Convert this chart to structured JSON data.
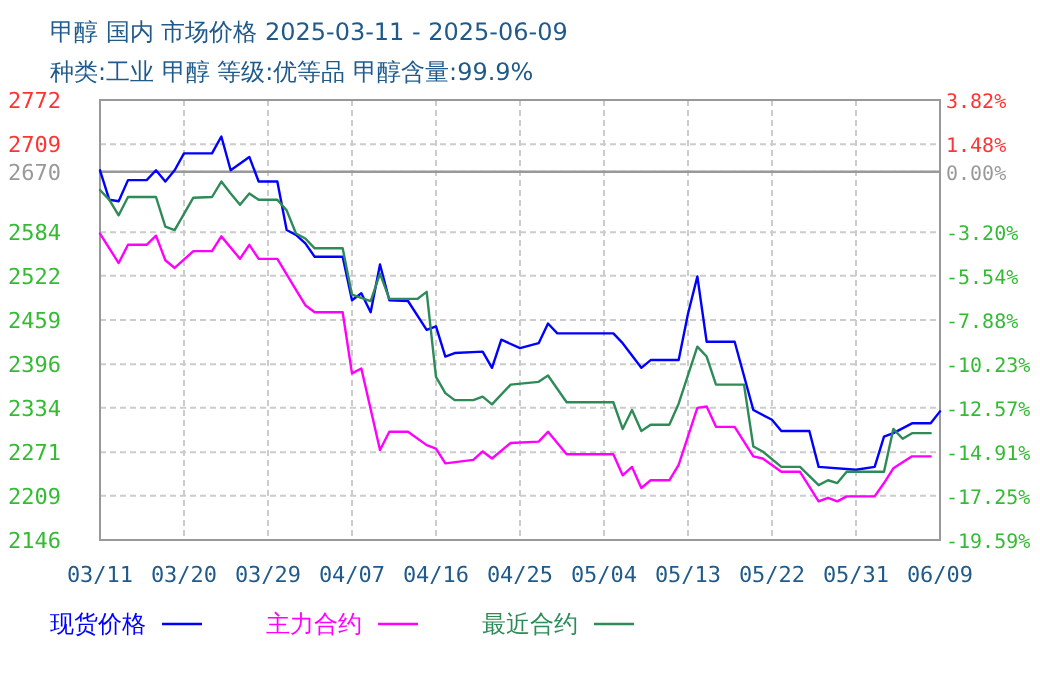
{
  "chart_data": {
    "type": "line",
    "title": "甲醇 国内 市场价格 2025-03-11 - 2025-06-09",
    "subtitle": "种类:工业 甲醇 等级:优等品 甲醇含量:99.9%",
    "xlim": [
      "2025-03-11",
      "2025-06-09"
    ],
    "xticks": [
      {
        "value": "2025-03-11",
        "label": "03/11"
      },
      {
        "value": "2025-03-20",
        "label": "03/20"
      },
      {
        "value": "2025-03-29",
        "label": "03/29"
      },
      {
        "value": "2025-04-07",
        "label": "04/07"
      },
      {
        "value": "2025-04-16",
        "label": "04/16"
      },
      {
        "value": "2025-04-25",
        "label": "04/25"
      },
      {
        "value": "2025-05-04",
        "label": "05/04"
      },
      {
        "value": "2025-05-13",
        "label": "05/13"
      },
      {
        "value": "2025-05-22",
        "label": "05/22"
      },
      {
        "value": "2025-05-31",
        "label": "05/31"
      },
      {
        "value": "2025-06-09",
        "label": "06/09"
      }
    ],
    "ylim": [
      2146,
      2772
    ],
    "yticks": [
      2146,
      2209,
      2271,
      2334,
      2396,
      2459,
      2522,
      2584,
      2670,
      2709,
      2772
    ],
    "y2lim": [
      -19.59,
      3.82
    ],
    "y2ticks": [
      {
        "value": -19.59,
        "label": "-19.59%"
      },
      {
        "value": -17.25,
        "label": "-17.25%"
      },
      {
        "value": -14.91,
        "label": "-14.91%"
      },
      {
        "value": -12.57,
        "label": "-12.57%"
      },
      {
        "value": -10.23,
        "label": "-10.23%"
      },
      {
        "value": -7.88,
        "label": "-7.88%"
      },
      {
        "value": -5.54,
        "label": "-5.54%"
      },
      {
        "value": -3.2,
        "label": "-3.20%"
      },
      {
        "value": 0,
        "label": "0.00%"
      },
      {
        "value": 1.48,
        "label": "1.48%"
      },
      {
        "value": 3.82,
        "label": "3.82%"
      }
    ],
    "ref_lines": [
      {
        "axis": "y",
        "value": 2670,
        "label": null,
        "color": "#999999"
      }
    ],
    "grid": true,
    "legend": "bottom",
    "line_style": "solid",
    "marker": "none",
    "series": [
      {
        "name": "现货价格",
        "color": "#0000ff",
        "x": [
          "2025-03-11",
          "2025-03-12",
          "2025-03-13",
          "2025-03-14",
          "2025-03-16",
          "2025-03-17",
          "2025-03-18",
          "2025-03-19",
          "2025-03-20",
          "2025-03-23",
          "2025-03-24",
          "2025-03-25",
          "2025-03-27",
          "2025-03-28",
          "2025-03-30",
          "2025-03-31",
          "2025-04-01",
          "2025-04-02",
          "2025-04-03",
          "2025-04-06",
          "2025-04-07",
          "2025-04-08",
          "2025-04-09",
          "2025-04-10",
          "2025-04-11",
          "2025-04-13",
          "2025-04-15",
          "2025-04-16",
          "2025-04-17",
          "2025-04-18",
          "2025-04-21",
          "2025-04-22",
          "2025-04-23",
          "2025-04-25",
          "2025-04-27",
          "2025-04-28",
          "2025-04-29",
          "2025-05-05",
          "2025-05-06",
          "2025-05-08",
          "2025-05-09",
          "2025-05-12",
          "2025-05-13",
          "2025-05-14",
          "2025-05-15",
          "2025-05-18",
          "2025-05-20",
          "2025-05-22",
          "2025-05-23",
          "2025-05-26",
          "2025-05-27",
          "2025-05-31",
          "2025-06-02",
          "2025-06-03",
          "2025-06-04",
          "2025-06-06",
          "2025-06-08",
          "2025-06-09"
        ],
        "values": [
          2672,
          2630,
          2628,
          2658,
          2658,
          2672,
          2656,
          2672,
          2696,
          2696,
          2720,
          2672,
          2691,
          2656,
          2656,
          2587,
          2580,
          2568,
          2549,
          2549,
          2487,
          2497,
          2470,
          2538,
          2487,
          2486,
          2445,
          2450,
          2407,
          2412,
          2414,
          2391,
          2431,
          2419,
          2426,
          2454,
          2440,
          2440,
          2426,
          2391,
          2402,
          2402,
          2468,
          2521,
          2428,
          2428,
          2331,
          2317,
          2301,
          2301,
          2250,
          2246,
          2250,
          2293,
          2298,
          2312,
          2312,
          2329
        ]
      },
      {
        "name": "主力合约",
        "color": "#ff00ff",
        "x": [
          "2025-03-11",
          "2025-03-13",
          "2025-03-14",
          "2025-03-16",
          "2025-03-17",
          "2025-03-18",
          "2025-03-19",
          "2025-03-21",
          "2025-03-23",
          "2025-03-24",
          "2025-03-26",
          "2025-03-27",
          "2025-03-28",
          "2025-03-30",
          "2025-04-01",
          "2025-04-02",
          "2025-04-03",
          "2025-04-06",
          "2025-04-07",
          "2025-04-08",
          "2025-04-10",
          "2025-04-11",
          "2025-04-13",
          "2025-04-15",
          "2025-04-16",
          "2025-04-17",
          "2025-04-20",
          "2025-04-21",
          "2025-04-22",
          "2025-04-24",
          "2025-04-27",
          "2025-04-28",
          "2025-04-30",
          "2025-05-05",
          "2025-05-06",
          "2025-05-07",
          "2025-05-08",
          "2025-05-09",
          "2025-05-11",
          "2025-05-12",
          "2025-05-14",
          "2025-05-15",
          "2025-05-16",
          "2025-05-18",
          "2025-05-20",
          "2025-05-21",
          "2025-05-23",
          "2025-05-25",
          "2025-05-27",
          "2025-05-28",
          "2025-05-29",
          "2025-05-30",
          "2025-06-02",
          "2025-06-03",
          "2025-06-04",
          "2025-06-06",
          "2025-06-08"
        ],
        "values": [
          2582,
          2540,
          2566,
          2566,
          2579,
          2544,
          2533,
          2557,
          2557,
          2578,
          2546,
          2566,
          2546,
          2546,
          2502,
          2480,
          2470,
          2470,
          2383,
          2390,
          2274,
          2300,
          2300,
          2281,
          2276,
          2255,
          2260,
          2272,
          2262,
          2284,
          2286,
          2300,
          2268,
          2268,
          2238,
          2250,
          2220,
          2231,
          2231,
          2253,
          2334,
          2336,
          2307,
          2307,
          2265,
          2262,
          2243,
          2243,
          2201,
          2206,
          2201,
          2208,
          2208,
          2227,
          2248,
          2265,
          2265
        ]
      },
      {
        "name": "最近合约",
        "color": "#2e8b57",
        "x": [
          "2025-03-11",
          "2025-03-12",
          "2025-03-13",
          "2025-03-14",
          "2025-03-17",
          "2025-03-18",
          "2025-03-19",
          "2025-03-21",
          "2025-03-23",
          "2025-03-24",
          "2025-03-25",
          "2025-03-26",
          "2025-03-27",
          "2025-03-28",
          "2025-03-30",
          "2025-03-31",
          "2025-04-01",
          "2025-04-02",
          "2025-04-03",
          "2025-04-06",
          "2025-04-07",
          "2025-04-09",
          "2025-04-10",
          "2025-04-11",
          "2025-04-14",
          "2025-04-15",
          "2025-04-16",
          "2025-04-17",
          "2025-04-18",
          "2025-04-20",
          "2025-04-21",
          "2025-04-22",
          "2025-04-24",
          "2025-04-27",
          "2025-04-28",
          "2025-04-30",
          "2025-05-05",
          "2025-05-06",
          "2025-05-07",
          "2025-05-08",
          "2025-05-09",
          "2025-05-11",
          "2025-05-12",
          "2025-05-14",
          "2025-05-15",
          "2025-05-16",
          "2025-05-19",
          "2025-05-20",
          "2025-05-21",
          "2025-05-23",
          "2025-05-25",
          "2025-05-27",
          "2025-05-28",
          "2025-05-29",
          "2025-05-30",
          "2025-06-03",
          "2025-06-04",
          "2025-06-05",
          "2025-06-06",
          "2025-06-08"
        ],
        "values": [
          2644,
          2630,
          2608,
          2634,
          2634,
          2592,
          2587,
          2633,
          2634,
          2656,
          2639,
          2623,
          2639,
          2630,
          2630,
          2615,
          2582,
          2575,
          2561,
          2561,
          2495,
          2486,
          2525,
          2489,
          2489,
          2499,
          2378,
          2355,
          2345,
          2345,
          2350,
          2339,
          2367,
          2371,
          2380,
          2342,
          2342,
          2304,
          2331,
          2301,
          2310,
          2310,
          2340,
          2421,
          2407,
          2367,
          2367,
          2279,
          2272,
          2250,
          2250,
          2224,
          2231,
          2227,
          2243,
          2243,
          2304,
          2290,
          2298,
          2298
        ]
      }
    ]
  }
}
